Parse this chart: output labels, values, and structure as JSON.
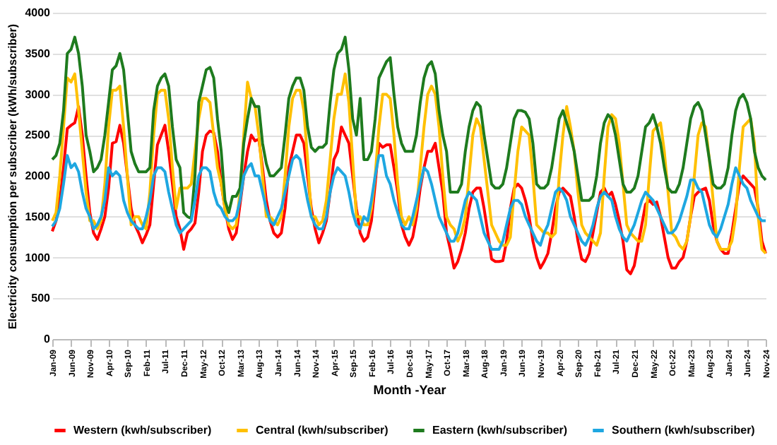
{
  "chart_data": {
    "type": "line",
    "xlabel": "Month -Year",
    "ylabel": "Electricity consumption per subscriber (kWh/subscriber)",
    "categories": [
      "Jan-09",
      null,
      null,
      null,
      null,
      "Jun-09",
      null,
      null,
      null,
      null,
      "Nov-09",
      null,
      null,
      null,
      null,
      "Apr-10",
      null,
      null,
      null,
      null,
      "Sep-10",
      null,
      null,
      null,
      null,
      "Feb-11",
      null,
      null,
      null,
      null,
      "Jul-11",
      null,
      null,
      null,
      null,
      "Dec-11",
      null,
      null,
      null,
      null,
      "May-12",
      null,
      null,
      null,
      null,
      "Oct-12",
      null,
      null,
      null,
      null,
      "Mar-13",
      null,
      null,
      null,
      null,
      "Aug-13",
      null,
      null,
      null,
      null,
      "Jan-14",
      null,
      null,
      null,
      null,
      "Jun-14",
      null,
      null,
      null,
      null,
      "Nov-14",
      null,
      null,
      null,
      null,
      "Apr-15",
      null,
      null,
      null,
      null,
      "Sep-15",
      null,
      null,
      null,
      null,
      "Feb-16",
      null,
      null,
      null,
      null,
      "Jul-16",
      null,
      null,
      null,
      null,
      "Dec-16",
      null,
      null,
      null,
      null,
      "May-17",
      null,
      null,
      null,
      null,
      "Oct-17",
      null,
      null,
      null,
      null,
      "Mar-18",
      null,
      null,
      null,
      null,
      "Aug-18",
      null,
      null,
      null,
      null,
      "Jan-19",
      null,
      null,
      null,
      null,
      "Jun-19",
      null,
      null,
      null,
      null,
      "Nov-19",
      null,
      null,
      null,
      null,
      "Apr-20",
      null,
      null,
      null,
      null,
      "Sep-20",
      null,
      null,
      null,
      null,
      "Feb-21",
      null,
      null,
      null,
      null,
      "Jul-21",
      null,
      null,
      null,
      null,
      "Dec-21",
      null,
      null,
      null,
      null,
      "May-22",
      null,
      null,
      null,
      null,
      "Oct-22",
      null,
      null,
      null,
      null,
      "Mar-23",
      null,
      null,
      null,
      null,
      "Aug-23",
      null,
      null,
      null,
      null,
      "Jan-24",
      null,
      null,
      null,
      null,
      "Jun-24",
      null,
      null,
      null,
      null,
      "Nov-24"
    ],
    "series": [
      {
        "name": "Western (kwh/subscriber)",
        "color": "#ff0000",
        "values": [
          1320,
          1450,
          1700,
          2100,
          2580,
          2620,
          2650,
          2850,
          2500,
          2000,
          1550,
          1300,
          1220,
          1350,
          1500,
          1850,
          2400,
          2420,
          2620,
          2400,
          2000,
          1600,
          1400,
          1300,
          1180,
          1280,
          1400,
          1900,
          2380,
          2500,
          2620,
          2300,
          1900,
          1500,
          1350,
          1100,
          1300,
          1350,
          1420,
          1800,
          2300,
          2500,
          2550,
          2530,
          2300,
          1900,
          1600,
          1350,
          1220,
          1300,
          1650,
          2000,
          2300,
          2500,
          2430,
          2450,
          2100,
          1700,
          1450,
          1300,
          1250,
          1300,
          1600,
          2100,
          2300,
          2500,
          2500,
          2400,
          2000,
          1600,
          1350,
          1180,
          1300,
          1450,
          1800,
          2200,
          2300,
          2600,
          2500,
          2400,
          2000,
          1600,
          1300,
          1200,
          1250,
          1450,
          1900,
          2400,
          2350,
          2380,
          2380,
          2100,
          1800,
          1400,
          1250,
          1150,
          1250,
          1500,
          1850,
          2100,
          2300,
          2300,
          2400,
          2100,
          1800,
          1300,
          1100,
          870,
          950,
          1100,
          1300,
          1600,
          1800,
          1850,
          1850,
          1600,
          1300,
          980,
          950,
          950,
          960,
          1200,
          1600,
          1850,
          1900,
          1850,
          1700,
          1500,
          1200,
          1000,
          870,
          950,
          1050,
          1300,
          1600,
          1800,
          1850,
          1800,
          1750,
          1500,
          1200,
          980,
          950,
          1050,
          1300,
          1550,
          1800,
          1850,
          1750,
          1800,
          1650,
          1450,
          1200,
          850,
          800,
          900,
          1150,
          1400,
          1650,
          1700,
          1650,
          1680,
          1500,
          1250,
          1000,
          870,
          870,
          950,
          1000,
          1200,
          1500,
          1750,
          1800,
          1830,
          1850,
          1700,
          1400,
          1200,
          1100,
          1050,
          1050,
          1300,
          1600,
          1900,
          2000,
          1950,
          1900,
          1850,
          1600,
          1200,
          1050
        ]
      },
      {
        "name": "Central (kwh/subscriber)",
        "color": "#ffc000",
        "values": [
          1450,
          1550,
          2000,
          2600,
          3200,
          3150,
          3250,
          2800,
          2300,
          1800,
          1450,
          1450,
          1350,
          1450,
          1900,
          2600,
          3050,
          3050,
          3100,
          2600,
          2000,
          1400,
          1500,
          1500,
          1400,
          1350,
          1800,
          2500,
          3000,
          3050,
          3050,
          2700,
          2100,
          1600,
          1850,
          1850,
          1850,
          1900,
          2300,
          2700,
          2950,
          2950,
          2900,
          2500,
          2100,
          1900,
          1600,
          1400,
          1350,
          1400,
          1800,
          2500,
          3150,
          2950,
          2850,
          2500,
          2000,
          1500,
          1500,
          1450,
          1400,
          1500,
          2000,
          2600,
          2950,
          3050,
          3050,
          2800,
          2200,
          1500,
          1500,
          1400,
          1450,
          1700,
          2200,
          2700,
          3000,
          3000,
          3250,
          2900,
          2200,
          1500,
          1500,
          1400,
          1400,
          1600,
          2000,
          2600,
          3000,
          3000,
          2950,
          2500,
          1900,
          1500,
          1400,
          1500,
          1400,
          1600,
          2100,
          2600,
          3000,
          3100,
          3000,
          2600,
          2000,
          1500,
          1400,
          1350,
          1200,
          1300,
          1500,
          2000,
          2500,
          2700,
          2600,
          2200,
          1800,
          1400,
          1300,
          1200,
          1150,
          1150,
          1250,
          1800,
          2300,
          2600,
          2550,
          2500,
          2000,
          1400,
          1350,
          1300,
          1300,
          1250,
          1300,
          2000,
          2500,
          2850,
          2600,
          2300,
          1800,
          1400,
          1300,
          1250,
          1200,
          1150,
          1300,
          2000,
          2600,
          2750,
          2700,
          2400,
          1900,
          1400,
          1300,
          1250,
          1200,
          1200,
          1400,
          2000,
          2550,
          2600,
          2650,
          2300,
          1800,
          1300,
          1250,
          1150,
          1100,
          1200,
          1500,
          2000,
          2500,
          2650,
          2600,
          2200,
          1700,
          1200,
          1100,
          1100,
          1100,
          1200,
          1500,
          2100,
          2600,
          2650,
          2700,
          2400,
          1500,
          1100,
          1050
        ]
      },
      {
        "name": "Eastern (kwh/subscriber)",
        "color": "#1e7b1e",
        "values": [
          2200,
          2250,
          2400,
          2800,
          3500,
          3550,
          3700,
          3500,
          3100,
          2500,
          2300,
          2050,
          2100,
          2200,
          2500,
          2900,
          3300,
          3350,
          3500,
          3300,
          2800,
          2300,
          2150,
          2050,
          2050,
          2050,
          2100,
          2800,
          3100,
          3200,
          3250,
          3100,
          2600,
          2200,
          2100,
          1550,
          1500,
          1480,
          2000,
          2900,
          3100,
          3300,
          3330,
          3200,
          2700,
          2300,
          1700,
          1550,
          1750,
          1750,
          1850,
          2400,
          2700,
          2950,
          2850,
          2850,
          2400,
          2150,
          2000,
          2000,
          2050,
          2100,
          2500,
          2950,
          3100,
          3200,
          3200,
          3050,
          2600,
          2350,
          2300,
          2350,
          2350,
          2400,
          2900,
          3300,
          3500,
          3550,
          3700,
          3300,
          2700,
          2500,
          2950,
          2200,
          2200,
          2300,
          2700,
          3200,
          3300,
          3400,
          3450,
          3000,
          2600,
          2400,
          2300,
          2300,
          2300,
          2500,
          2900,
          3200,
          3350,
          3400,
          3250,
          2800,
          2500,
          2300,
          1800,
          1800,
          1800,
          1900,
          2300,
          2600,
          2800,
          2900,
          2850,
          2500,
          2200,
          1900,
          1850,
          1850,
          1900,
          2100,
          2400,
          2700,
          2800,
          2800,
          2780,
          2700,
          2400,
          1900,
          1850,
          1850,
          1900,
          2100,
          2400,
          2700,
          2800,
          2650,
          2500,
          2300,
          2000,
          1700,
          1700,
          1700,
          1750,
          2000,
          2400,
          2650,
          2750,
          2700,
          2500,
          2200,
          1900,
          1800,
          1800,
          1850,
          2000,
          2300,
          2600,
          2650,
          2750,
          2600,
          2400,
          2100,
          1850,
          1800,
          1800,
          1900,
          2100,
          2400,
          2700,
          2850,
          2900,
          2800,
          2500,
          2200,
          1900,
          1850,
          1850,
          1900,
          2100,
          2500,
          2800,
          2950,
          3000,
          2900,
          2700,
          2300,
          2100,
          2000,
          1950
        ]
      },
      {
        "name": "Southern (kwh/subscriber)",
        "color": "#1ea7e1",
        "values": [
          1380,
          1450,
          1600,
          1900,
          2250,
          2100,
          2150,
          2050,
          1800,
          1600,
          1500,
          1350,
          1400,
          1500,
          1700,
          2100,
          2000,
          2050,
          2000,
          1700,
          1550,
          1450,
          1400,
          1350,
          1350,
          1500,
          1700,
          2000,
          2100,
          2100,
          2050,
          1800,
          1600,
          1400,
          1300,
          1350,
          1400,
          1450,
          1700,
          2000,
          2100,
          2100,
          2050,
          1800,
          1650,
          1600,
          1500,
          1450,
          1450,
          1500,
          1700,
          2000,
          2100,
          2150,
          2000,
          2000,
          1800,
          1600,
          1450,
          1400,
          1500,
          1600,
          1800,
          2000,
          2200,
          2250,
          2200,
          1950,
          1700,
          1500,
          1400,
          1350,
          1350,
          1500,
          1800,
          2000,
          2100,
          2050,
          2000,
          1800,
          1550,
          1400,
          1350,
          1500,
          1450,
          1700,
          2000,
          2250,
          2250,
          2000,
          1900,
          1700,
          1550,
          1400,
          1350,
          1350,
          1500,
          1700,
          1900,
          2100,
          2050,
          1900,
          1700,
          1500,
          1400,
          1300,
          1200,
          1200,
          1300,
          1500,
          1700,
          1800,
          1750,
          1700,
          1500,
          1300,
          1200,
          1100,
          1100,
          1100,
          1200,
          1400,
          1600,
          1700,
          1700,
          1650,
          1500,
          1400,
          1300,
          1200,
          1150,
          1300,
          1400,
          1600,
          1800,
          1850,
          1800,
          1700,
          1500,
          1400,
          1300,
          1200,
          1150,
          1250,
          1400,
          1600,
          1750,
          1800,
          1750,
          1700,
          1500,
          1350,
          1250,
          1200,
          1300,
          1400,
          1550,
          1700,
          1800,
          1750,
          1700,
          1600,
          1500,
          1400,
          1300,
          1300,
          1350,
          1450,
          1600,
          1750,
          1950,
          1950,
          1850,
          1800,
          1600,
          1400,
          1300,
          1250,
          1350,
          1500,
          1650,
          1900,
          2100,
          2000,
          1900,
          1850,
          1700,
          1600,
          1500,
          1450,
          1450
        ]
      }
    ],
    "ylim": [
      0,
      4000
    ],
    "yticks": [
      0,
      500,
      1000,
      1500,
      2000,
      2500,
      3000,
      3500,
      4000
    ],
    "grid": "y",
    "legend": "bottom",
    "marker": "none",
    "line_style": "solid"
  }
}
